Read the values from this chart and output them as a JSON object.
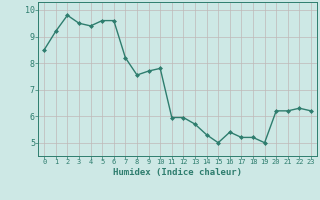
{
  "x": [
    0,
    1,
    2,
    3,
    4,
    5,
    6,
    7,
    8,
    9,
    10,
    11,
    12,
    13,
    14,
    15,
    16,
    17,
    18,
    19,
    20,
    21,
    22,
    23
  ],
  "y": [
    8.5,
    9.2,
    9.8,
    9.5,
    9.4,
    9.6,
    9.6,
    8.2,
    7.55,
    7.7,
    7.8,
    5.95,
    5.95,
    5.7,
    5.3,
    5.0,
    5.4,
    5.2,
    5.2,
    5.0,
    6.2,
    6.2,
    6.3,
    6.2
  ],
  "line_color": "#2e7d6e",
  "marker": "D",
  "marker_size": 2.0,
  "line_width": 1.0,
  "bg_color": "#cde8e5",
  "grid_color": "#c0b8b8",
  "tick_color": "#2e7d6e",
  "xlabel": "Humidex (Indice chaleur)",
  "xlabel_fontsize": 6.5,
  "ylim": [
    4.5,
    10.3
  ],
  "yticks": [
    5,
    6,
    7,
    8,
    9,
    10
  ],
  "xticks": [
    0,
    1,
    2,
    3,
    4,
    5,
    6,
    7,
    8,
    9,
    10,
    11,
    12,
    13,
    14,
    15,
    16,
    17,
    18,
    19,
    20,
    21,
    22,
    23
  ]
}
